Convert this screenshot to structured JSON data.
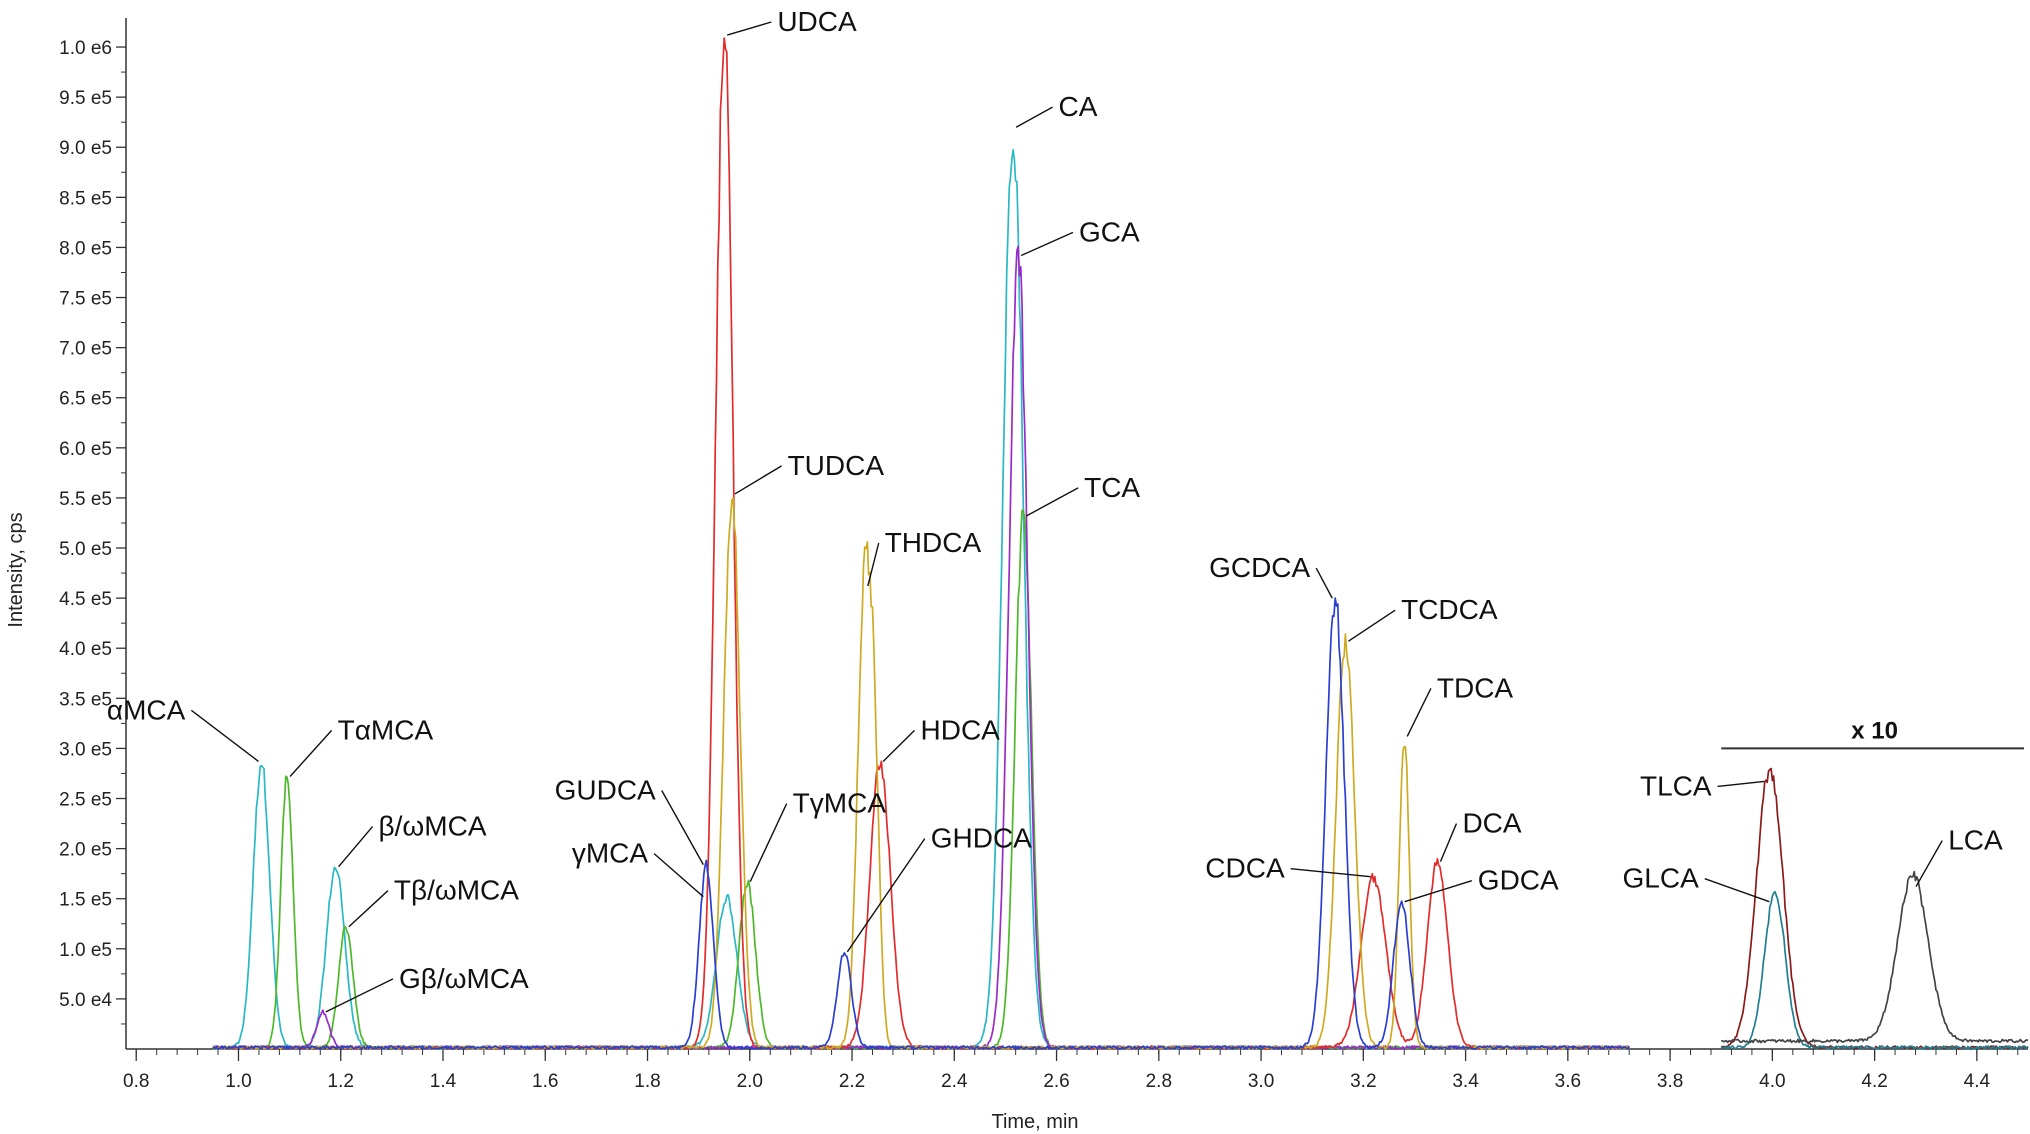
{
  "chart_data": {
    "type": "line",
    "xlabel": "Time, min",
    "ylabel": "Intensity, cps",
    "xlim": [
      0.78,
      4.5
    ],
    "ylim": [
      0,
      1025000
    ],
    "x_ticks": [
      "0.8",
      "1.0",
      "1.2",
      "1.4",
      "1.6",
      "1.8",
      "2.0",
      "2.2",
      "2.4",
      "2.6",
      "2.8",
      "3.0",
      "3.2",
      "3.4",
      "3.6",
      "3.8",
      "4.0",
      "4.2",
      "4.4"
    ],
    "y_ticks": [
      {
        "value": 50000,
        "label": "5.0  e4"
      },
      {
        "value": 100000,
        "label": "1.0  e5"
      },
      {
        "value": 150000,
        "label": "1.5  e5"
      },
      {
        "value": 200000,
        "label": "2.0  e5"
      },
      {
        "value": 250000,
        "label": "2.5  e5"
      },
      {
        "value": 300000,
        "label": "3.0  e5"
      },
      {
        "value": 350000,
        "label": "3.5  e5"
      },
      {
        "value": 400000,
        "label": "4.0  e5"
      },
      {
        "value": 450000,
        "label": "4.5  e5"
      },
      {
        "value": 500000,
        "label": "5.0  e5"
      },
      {
        "value": 550000,
        "label": "5.5  e5"
      },
      {
        "value": 600000,
        "label": "6.0  e5"
      },
      {
        "value": 650000,
        "label": "6.5  e5"
      },
      {
        "value": 700000,
        "label": "7.0  e5"
      },
      {
        "value": 750000,
        "label": "7.5  e5"
      },
      {
        "value": 800000,
        "label": "8.0  e5"
      },
      {
        "value": 850000,
        "label": "8.5  e5"
      },
      {
        "value": 900000,
        "label": "9.0  e5"
      },
      {
        "value": 950000,
        "label": "9.5  e5"
      },
      {
        "value": 1000000,
        "label": "1.0  e6"
      }
    ],
    "scale_bar": {
      "label": "x 10",
      "x_range": [
        3.9,
        4.5
      ],
      "level": 300000
    },
    "series": [
      {
        "color": "#29b8c4",
        "peaks": [
          {
            "rt": 1.045,
            "height": 285000,
            "width": 0.016
          },
          {
            "rt": 1.19,
            "height": 180000,
            "width": 0.018
          },
          {
            "rt": 1.955,
            "height": 150000,
            "width": 0.02
          },
          {
            "rt": 2.515,
            "height": 918000,
            "width": 0.02
          }
        ]
      },
      {
        "color": "#4db82a",
        "peaks": [
          {
            "rt": 1.095,
            "height": 270000,
            "width": 0.012
          },
          {
            "rt": 1.21,
            "height": 120000,
            "width": 0.014
          },
          {
            "rt": 1.995,
            "height": 165000,
            "width": 0.016
          },
          {
            "rt": 2.535,
            "height": 530000,
            "width": 0.016
          }
        ]
      },
      {
        "color": "#9b2bc8",
        "peaks": [
          {
            "rt": 1.165,
            "height": 35000,
            "width": 0.012
          },
          {
            "rt": 2.525,
            "height": 790000,
            "width": 0.018
          }
        ]
      },
      {
        "color": "#e32b2b",
        "peaks": [
          {
            "rt": 1.95,
            "height": 1010000,
            "width": 0.017
          },
          {
            "rt": 2.255,
            "height": 285000,
            "width": 0.02
          },
          {
            "rt": 3.22,
            "height": 170000,
            "width": 0.024
          },
          {
            "rt": 3.345,
            "height": 185000,
            "width": 0.02
          }
        ]
      },
      {
        "color": "#cfaa22",
        "peaks": [
          {
            "rt": 1.965,
            "height": 552000,
            "width": 0.016
          },
          {
            "rt": 2.225,
            "height": 460000,
            "width": 0.014
          },
          {
            "rt": 2.245,
            "height": 190000,
            "width": 0.01
          },
          {
            "rt": 3.165,
            "height": 405000,
            "width": 0.018
          },
          {
            "rt": 3.28,
            "height": 310000,
            "width": 0.01
          }
        ]
      },
      {
        "color": "#2a3fd1",
        "peaks": [
          {
            "rt": 1.915,
            "height": 182000,
            "width": 0.014
          },
          {
            "rt": 2.185,
            "height": 95000,
            "width": 0.014
          },
          {
            "rt": 3.145,
            "height": 448000,
            "width": 0.018
          },
          {
            "rt": 3.275,
            "height": 145000,
            "width": 0.016
          }
        ]
      },
      {
        "color": "#8b1a1a",
        "scaled_x10": true,
        "x_start": 3.9,
        "peaks": [
          {
            "rt": 3.995,
            "height": 278000,
            "width": 0.026
          }
        ]
      },
      {
        "color": "#1f7f91",
        "scaled_x10": true,
        "x_start": 3.9,
        "peaks": [
          {
            "rt": 4.005,
            "height": 155000,
            "width": 0.02
          }
        ]
      },
      {
        "color": "#444444",
        "scaled_x10": true,
        "x_start": 3.9,
        "baseline": 8000,
        "peaks": [
          {
            "rt": 4.275,
            "height": 165000,
            "width": 0.03
          }
        ]
      }
    ],
    "annotations": [
      {
        "text": "UDCA",
        "x": 1.95,
        "y": 1010000,
        "label_x": 2.05,
        "label_y": 1025000
      },
      {
        "text": "CA",
        "x": 2.515,
        "y": 918000,
        "label_x": 2.6,
        "label_y": 940000
      },
      {
        "text": "GCA",
        "x": 2.525,
        "y": 790000,
        "label_x": 2.64,
        "label_y": 815000
      },
      {
        "text": "TUDCA",
        "x": 1.965,
        "y": 552000,
        "label_x": 2.07,
        "label_y": 582000
      },
      {
        "text": "TCA",
        "x": 2.535,
        "y": 530000,
        "label_x": 2.65,
        "label_y": 560000
      },
      {
        "text": "THDCA",
        "x": 2.225,
        "y": 460000,
        "label_x": 2.26,
        "label_y": 505000
      },
      {
        "text": "GCDCA",
        "x": 3.145,
        "y": 448000,
        "label_x": 3.1,
        "label_y": 480000
      },
      {
        "text": "TCDCA",
        "x": 3.165,
        "y": 405000,
        "label_x": 3.27,
        "label_y": 438000
      },
      {
        "text": "TDCA",
        "x": 3.28,
        "y": 310000,
        "label_x": 3.34,
        "label_y": 360000
      },
      {
        "text": "αMCA",
        "x": 1.045,
        "y": 285000,
        "label_x": 0.9,
        "label_y": 338000
      },
      {
        "text": "TαMCA",
        "x": 1.095,
        "y": 270000,
        "label_x": 1.19,
        "label_y": 318000
      },
      {
        "text": "HDCA",
        "x": 2.255,
        "y": 285000,
        "label_x": 2.33,
        "label_y": 318000
      },
      {
        "text": "GUDCA",
        "x": 1.915,
        "y": 182000,
        "label_x": 1.82,
        "label_y": 258000
      },
      {
        "text": "TγMCA",
        "x": 1.995,
        "y": 165000,
        "label_x": 2.08,
        "label_y": 245000
      },
      {
        "text": "β/ωMCA",
        "x": 1.19,
        "y": 180000,
        "label_x": 1.27,
        "label_y": 222000
      },
      {
        "text": "GHDCA",
        "x": 2.185,
        "y": 95000,
        "label_x": 2.35,
        "label_y": 210000
      },
      {
        "text": "γMCA",
        "x": 1.915,
        "y": 150000,
        "label_x": 1.805,
        "label_y": 195000
      },
      {
        "text": "DCA",
        "x": 3.345,
        "y": 185000,
        "label_x": 3.39,
        "label_y": 225000
      },
      {
        "text": "CDCA",
        "x": 3.22,
        "y": 170000,
        "label_x": 3.05,
        "label_y": 180000
      },
      {
        "text": "GDCA",
        "x": 3.275,
        "y": 145000,
        "label_x": 3.42,
        "label_y": 168000
      },
      {
        "text": "Tβ/ωMCA",
        "x": 1.21,
        "y": 120000,
        "label_x": 1.3,
        "label_y": 158000
      },
      {
        "text": "Gβ/ωMCA",
        "x": 1.165,
        "y": 35000,
        "label_x": 1.31,
        "label_y": 70000
      },
      {
        "text": "TLCA",
        "x": 3.99,
        "y": 265000,
        "label_x": 3.885,
        "label_y": 262000
      },
      {
        "text": "GLCA",
        "x": 4.0,
        "y": 145000,
        "label_x": 3.86,
        "label_y": 170000
      },
      {
        "text": "LCA",
        "x": 4.275,
        "y": 160000,
        "label_x": 4.34,
        "label_y": 208000
      }
    ]
  }
}
